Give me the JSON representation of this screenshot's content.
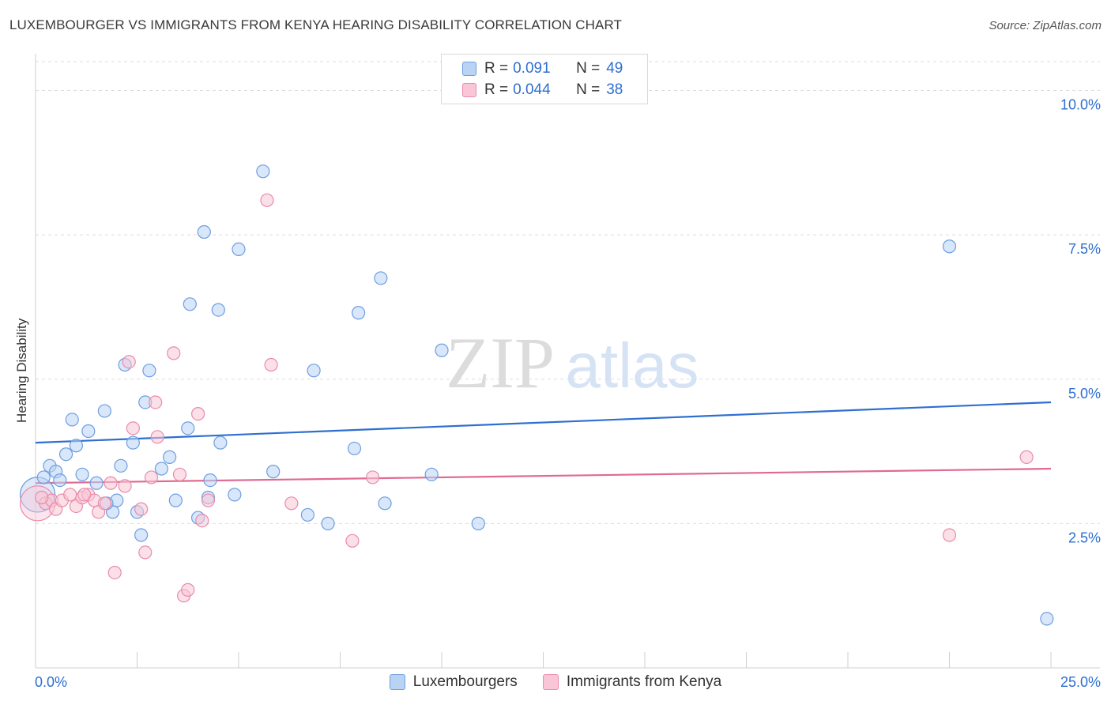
{
  "title": "LUXEMBOURGER VS IMMIGRANTS FROM KENYA HEARING DISABILITY CORRELATION CHART",
  "source": "Source: ZipAtlas.com",
  "watermark": {
    "zip": "ZIP",
    "atlas": "atlas"
  },
  "legend": {
    "r_label": "R =",
    "n_label": "N =",
    "rows": [
      {
        "r": "0.091",
        "n": "49"
      },
      {
        "r": "0.044",
        "n": "38"
      }
    ]
  },
  "colors": {
    "blue_fill": "#b9d3f5",
    "blue_stroke": "#6d9ee0",
    "blue_line": "#2e6fd0",
    "pink_fill": "#f8c6d6",
    "pink_stroke": "#e98bab",
    "pink_line": "#e06a93",
    "axis_text": "#2e6fd0"
  },
  "chart_data": {
    "type": "scatter",
    "title": "LUXEMBOURGER VS IMMIGRANTS FROM KENYA HEARING DISABILITY CORRELATION CHART",
    "xlabel": "",
    "ylabel": "Hearing Disability",
    "xlim": [
      0,
      25
    ],
    "ylim": [
      0,
      10.5
    ],
    "x_tick_labels": [
      "0.0%",
      "25.0%"
    ],
    "y_ticks": [
      {
        "value": 2.5,
        "label": "2.5%"
      },
      {
        "value": 5.0,
        "label": "5.0%"
      },
      {
        "value": 7.5,
        "label": "7.5%"
      },
      {
        "value": 10.0,
        "label": "10.0%"
      }
    ],
    "series": [
      {
        "name": "Luxembourgers",
        "trend": {
          "x": [
            0,
            25
          ],
          "y": [
            3.9,
            4.6
          ]
        },
        "points": [
          {
            "x": 0.05,
            "y": 3.0,
            "big": true
          },
          {
            "x": 0.2,
            "y": 3.3
          },
          {
            "x": 0.35,
            "y": 3.5
          },
          {
            "x": 0.5,
            "y": 3.4
          },
          {
            "x": 0.6,
            "y": 3.25
          },
          {
            "x": 0.9,
            "y": 4.3
          },
          {
            "x": 1.0,
            "y": 3.85
          },
          {
            "x": 0.75,
            "y": 3.7
          },
          {
            "x": 1.15,
            "y": 3.35
          },
          {
            "x": 1.3,
            "y": 4.1
          },
          {
            "x": 1.5,
            "y": 3.2
          },
          {
            "x": 1.7,
            "y": 4.45
          },
          {
            "x": 1.9,
            "y": 2.7
          },
          {
            "x": 2.0,
            "y": 2.9
          },
          {
            "x": 2.1,
            "y": 3.5
          },
          {
            "x": 2.2,
            "y": 5.25
          },
          {
            "x": 2.4,
            "y": 3.9
          },
          {
            "x": 2.5,
            "y": 2.7
          },
          {
            "x": 2.6,
            "y": 2.3
          },
          {
            "x": 2.7,
            "y": 4.6
          },
          {
            "x": 2.8,
            "y": 5.15
          },
          {
            "x": 3.1,
            "y": 3.45
          },
          {
            "x": 3.3,
            "y": 3.65
          },
          {
            "x": 3.45,
            "y": 2.9
          },
          {
            "x": 3.75,
            "y": 4.15
          },
          {
            "x": 3.8,
            "y": 6.3
          },
          {
            "x": 4.0,
            "y": 2.6
          },
          {
            "x": 4.15,
            "y": 7.55
          },
          {
            "x": 4.3,
            "y": 3.25
          },
          {
            "x": 4.5,
            "y": 6.2
          },
          {
            "x": 4.55,
            "y": 3.9
          },
          {
            "x": 4.9,
            "y": 3.0
          },
          {
            "x": 4.25,
            "y": 2.95
          },
          {
            "x": 5.0,
            "y": 7.25
          },
          {
            "x": 5.6,
            "y": 8.6
          },
          {
            "x": 5.85,
            "y": 3.4
          },
          {
            "x": 6.7,
            "y": 2.65
          },
          {
            "x": 6.85,
            "y": 5.15
          },
          {
            "x": 7.2,
            "y": 2.5
          },
          {
            "x": 7.85,
            "y": 3.8
          },
          {
            "x": 7.95,
            "y": 6.15
          },
          {
            "x": 8.5,
            "y": 6.75
          },
          {
            "x": 8.6,
            "y": 2.85
          },
          {
            "x": 9.75,
            "y": 3.35
          },
          {
            "x": 10.0,
            "y": 5.5
          },
          {
            "x": 10.9,
            "y": 2.5
          },
          {
            "x": 22.5,
            "y": 7.3
          },
          {
            "x": 24.9,
            "y": 0.85
          },
          {
            "x": 1.75,
            "y": 2.85
          }
        ]
      },
      {
        "name": "Immigrants from Kenya",
        "trend": {
          "x": [
            0,
            25
          ],
          "y": [
            3.2,
            3.45
          ]
        },
        "points": [
          {
            "x": 0.05,
            "y": 2.85,
            "big": true
          },
          {
            "x": 0.25,
            "y": 2.85
          },
          {
            "x": 0.4,
            "y": 2.9
          },
          {
            "x": 0.5,
            "y": 2.75
          },
          {
            "x": 0.65,
            "y": 2.9
          },
          {
            "x": 0.85,
            "y": 3.0
          },
          {
            "x": 1.0,
            "y": 2.8
          },
          {
            "x": 1.15,
            "y": 2.95
          },
          {
            "x": 1.3,
            "y": 3.0
          },
          {
            "x": 1.45,
            "y": 2.9
          },
          {
            "x": 1.55,
            "y": 2.7
          },
          {
            "x": 1.7,
            "y": 2.85
          },
          {
            "x": 1.85,
            "y": 3.2
          },
          {
            "x": 1.95,
            "y": 1.65
          },
          {
            "x": 2.2,
            "y": 3.15
          },
          {
            "x": 2.3,
            "y": 5.3
          },
          {
            "x": 2.4,
            "y": 4.15
          },
          {
            "x": 2.6,
            "y": 2.75
          },
          {
            "x": 2.7,
            "y": 2.0
          },
          {
            "x": 2.85,
            "y": 3.3
          },
          {
            "x": 2.95,
            "y": 4.6
          },
          {
            "x": 3.0,
            "y": 4.0
          },
          {
            "x": 3.4,
            "y": 5.45
          },
          {
            "x": 3.55,
            "y": 3.35
          },
          {
            "x": 3.65,
            "y": 1.25
          },
          {
            "x": 3.75,
            "y": 1.35
          },
          {
            "x": 4.0,
            "y": 4.4
          },
          {
            "x": 4.1,
            "y": 2.55
          },
          {
            "x": 4.25,
            "y": 2.9
          },
          {
            "x": 5.7,
            "y": 8.1
          },
          {
            "x": 5.8,
            "y": 5.25
          },
          {
            "x": 6.3,
            "y": 2.85
          },
          {
            "x": 7.8,
            "y": 2.2
          },
          {
            "x": 8.3,
            "y": 3.3
          },
          {
            "x": 22.5,
            "y": 2.3
          },
          {
            "x": 24.4,
            "y": 3.65
          },
          {
            "x": 1.2,
            "y": 3.0
          },
          {
            "x": 0.15,
            "y": 2.95
          }
        ]
      }
    ]
  },
  "bottom_legend": [
    "Luxembourgers",
    "Immigrants from Kenya"
  ]
}
